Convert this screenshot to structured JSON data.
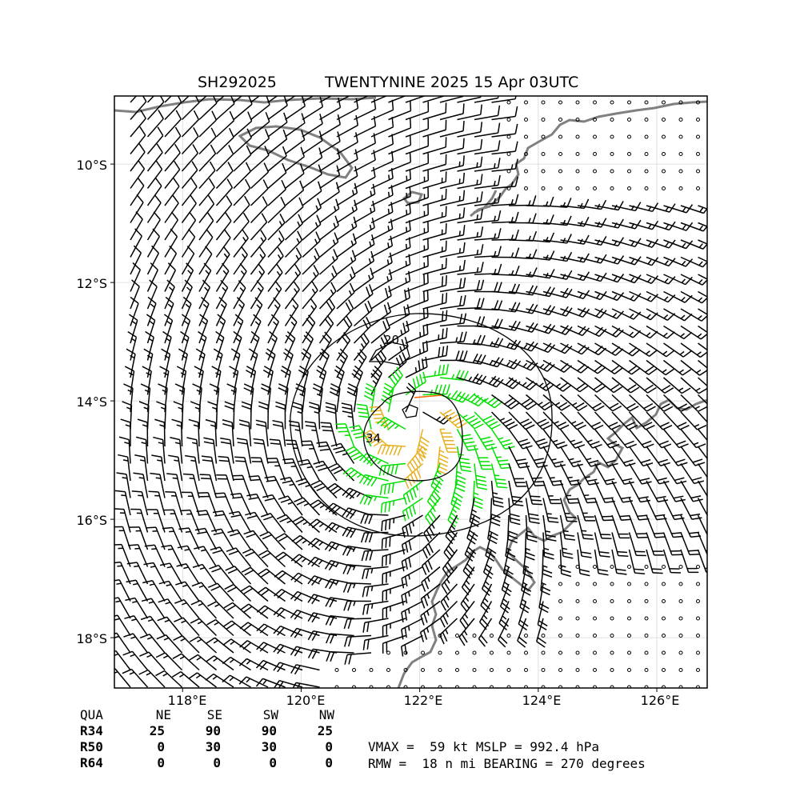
{
  "title": {
    "storm_id": "SH292025",
    "storm_info": "TWENTYNINE 2025 15 Apr 03UTC"
  },
  "axes": {
    "lat_ticks": [
      "10°S",
      "12°S",
      "14°S",
      "16°S",
      "18°S"
    ],
    "lon_ticks": [
      "118°E",
      "120°E",
      "122°E",
      "124°E",
      "126°E"
    ]
  },
  "map": {
    "center_lon": 121.9,
    "center_lat": -14.25,
    "contour_labels": [
      "20",
      "34"
    ],
    "colors": {
      "barb_weak": "#000000",
      "barb_34kt": "#00e000",
      "barb_50kt": "#e8b020",
      "barb_64kt": "#ff6000",
      "coastline": "#808080",
      "contour": "#000000",
      "grid": "#d8d8d8"
    }
  },
  "wind_radii_table": {
    "header": [
      "QUA",
      "NE",
      "SE",
      "SW",
      "NW"
    ],
    "rows": [
      {
        "label": "R34",
        "values": [
          "25",
          "90",
          "90",
          "25"
        ]
      },
      {
        "label": "R50",
        "values": [
          "0",
          "30",
          "30",
          "0"
        ]
      },
      {
        "label": "R64",
        "values": [
          "0",
          "0",
          "0",
          "0"
        ]
      }
    ]
  },
  "summary": {
    "line1": "VMAX =  59 kt MSLP = 992.4 hPa",
    "line2": "RMW =  18 n mi BEARING = 270 degrees"
  }
}
